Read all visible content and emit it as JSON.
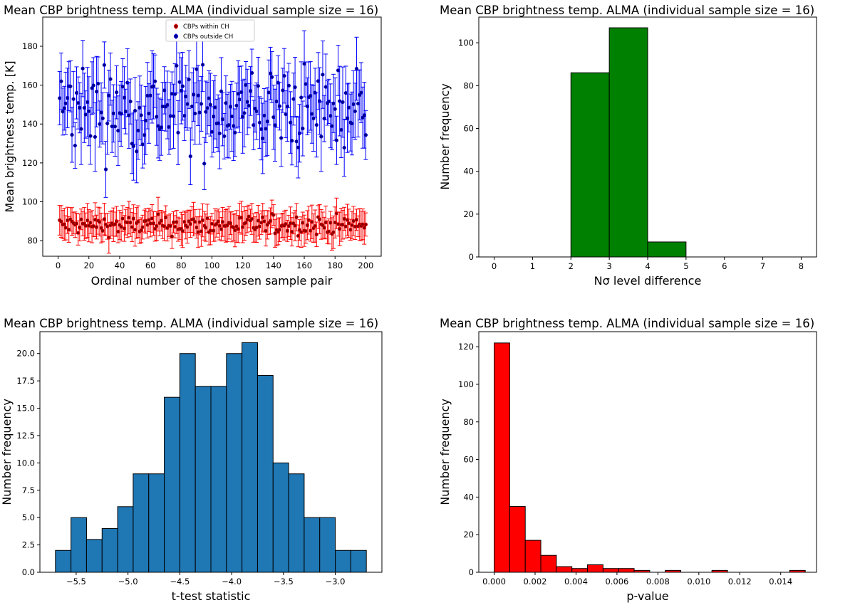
{
  "figure_title": "Mean CBP brightness temp. ALMA (individual sample size = 16)",
  "chart_data": [
    {
      "id": "p1",
      "type": "scatter",
      "title": "Mean CBP brightness temp. ALMA (individual sample size = 16)",
      "xlabel": "Ordinal number of the chosen sample pair",
      "ylabel": "Mean brightness temp. [K]",
      "xlim": [
        -10,
        210
      ],
      "ylim": [
        72,
        195
      ],
      "xticks": [
        0,
        20,
        40,
        60,
        80,
        100,
        120,
        140,
        160,
        180,
        200
      ],
      "yticks": [
        80,
        100,
        120,
        140,
        160,
        180
      ],
      "legend": "top-center",
      "n_points": 200,
      "series": [
        {
          "name": "CBPs within CH",
          "color": "#ff0000",
          "marker_color": "#8b0000",
          "mean": 88,
          "spread": 2.5,
          "error": 7
        },
        {
          "name": "CBPs outside CH",
          "color": "#0000ff",
          "marker_color": "#00008b",
          "mean": 148,
          "spread": 11,
          "error": 15
        }
      ]
    },
    {
      "id": "p2",
      "type": "bar",
      "title": "Mean CBP brightness temp. ALMA (individual sample size = 16)",
      "xlabel": "Nσ level difference",
      "ylabel": "Number frequency",
      "xlim": [
        -0.4,
        8.4
      ],
      "ylim": [
        0,
        112
      ],
      "xticks": [
        0,
        1,
        2,
        3,
        4,
        5,
        6,
        7,
        8
      ],
      "yticks": [
        0,
        20,
        40,
        60,
        80,
        100
      ],
      "color": "#008000",
      "edges": [
        0,
        1,
        2,
        3,
        4,
        5,
        6,
        7,
        8
      ],
      "values": [
        0,
        0,
        86,
        107,
        7,
        0,
        0,
        0
      ]
    },
    {
      "id": "p3",
      "type": "bar",
      "title": "Mean CBP brightness temp. ALMA (individual sample size = 16)",
      "xlabel": "t-test statistic",
      "ylabel": "Number frequency",
      "xlim": [
        -5.85,
        -2.55
      ],
      "ylim": [
        0,
        22
      ],
      "xticks": [
        -5.5,
        -5.0,
        -4.5,
        -4.0,
        -3.5,
        -3.0
      ],
      "xtick_labels": [
        "−5.5",
        "−5.0",
        "−4.5",
        "−4.0",
        "−3.5",
        "−3.0"
      ],
      "yticks": [
        0,
        2.5,
        5,
        7.5,
        10,
        12.5,
        15,
        17.5,
        20
      ],
      "ytick_labels": [
        "0.0",
        "2.5",
        "5.0",
        "7.5",
        "10.0",
        "12.5",
        "15.0",
        "17.5",
        "20.0"
      ],
      "color": "#1f77b4",
      "edges": [
        -5.7,
        -5.55,
        -5.4,
        -5.25,
        -5.1,
        -4.95,
        -4.8,
        -4.65,
        -4.5,
        -4.35,
        -4.2,
        -4.05,
        -3.9,
        -3.75,
        -3.6,
        -3.45,
        -3.3,
        -3.15,
        -3.0,
        -2.85,
        -2.7
      ],
      "values": [
        2,
        5,
        3,
        4,
        6,
        9,
        9,
        16,
        20,
        17,
        17,
        20,
        21,
        18,
        10,
        9,
        5,
        5,
        2,
        2
      ]
    },
    {
      "id": "p4",
      "type": "bar",
      "title": "Mean CBP brightness temp. ALMA (individual sample size = 16)",
      "xlabel": "p-value",
      "ylabel": "Number frequency",
      "xlim": [
        -0.00075,
        0.01575
      ],
      "ylim": [
        0,
        128
      ],
      "xticks": [
        0,
        0.002,
        0.004,
        0.006,
        0.008,
        0.01,
        0.012,
        0.014
      ],
      "xtick_labels": [
        "0.000",
        "0.002",
        "0.004",
        "0.006",
        "0.008",
        "0.010",
        "0.012",
        "0.014"
      ],
      "yticks": [
        0,
        20,
        40,
        60,
        80,
        100,
        120
      ],
      "color": "#ff0000",
      "edges": [
        0,
        0.00076,
        0.00152,
        0.00228,
        0.00304,
        0.0038,
        0.00456,
        0.00532,
        0.00608,
        0.00684,
        0.0076,
        0.00836,
        0.00912,
        0.00988,
        0.01064,
        0.0114,
        0.01216,
        0.01292,
        0.01368,
        0.01444,
        0.0152
      ],
      "values": [
        122,
        35,
        17,
        9,
        3,
        2,
        4,
        2,
        2,
        1,
        0,
        1,
        0,
        0,
        1,
        0,
        0,
        0,
        0,
        1
      ]
    }
  ]
}
